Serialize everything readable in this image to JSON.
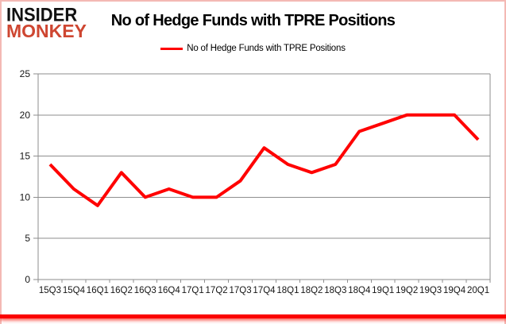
{
  "logo": {
    "line1": "INSIDER",
    "line2": "MONKEY"
  },
  "title": "No of Hedge Funds with TPRE Positions",
  "legend": {
    "label": "No of Hedge Funds with TPRE Positions"
  },
  "colors": {
    "series_line": "#ff0000",
    "grid": "#8e8e8e",
    "axis_text": "#161616",
    "title_text": "#000000",
    "logo_black": "#111111",
    "logo_red": "#ce4631",
    "card_border_pink": "#f4b9b4",
    "card_bottom_red": "#fb0200"
  },
  "chart_data": {
    "type": "line",
    "title": "No of Hedge Funds with TPRE Positions",
    "categories": [
      "15Q3",
      "15Q4",
      "16Q1",
      "16Q2",
      "16Q3",
      "16Q4",
      "17Q1",
      "17Q2",
      "17Q3",
      "17Q4",
      "18Q1",
      "18Q2",
      "18Q3",
      "18Q4",
      "19Q1",
      "19Q2",
      "19Q3",
      "19Q4",
      "20Q1"
    ],
    "series": [
      {
        "name": "No of Hedge Funds with TPRE Positions",
        "color": "#ff0000",
        "values": [
          14,
          11,
          9,
          13,
          10,
          11,
          10,
          10,
          12,
          16,
          14,
          13,
          14,
          18,
          19,
          20,
          20,
          20,
          17
        ]
      }
    ],
    "xlabel": "",
    "ylabel": "",
    "ylim": [
      0,
      25
    ],
    "yticks": [
      0,
      5,
      10,
      15,
      20,
      25
    ],
    "grid": "horizontal",
    "legend_position": "top"
  }
}
